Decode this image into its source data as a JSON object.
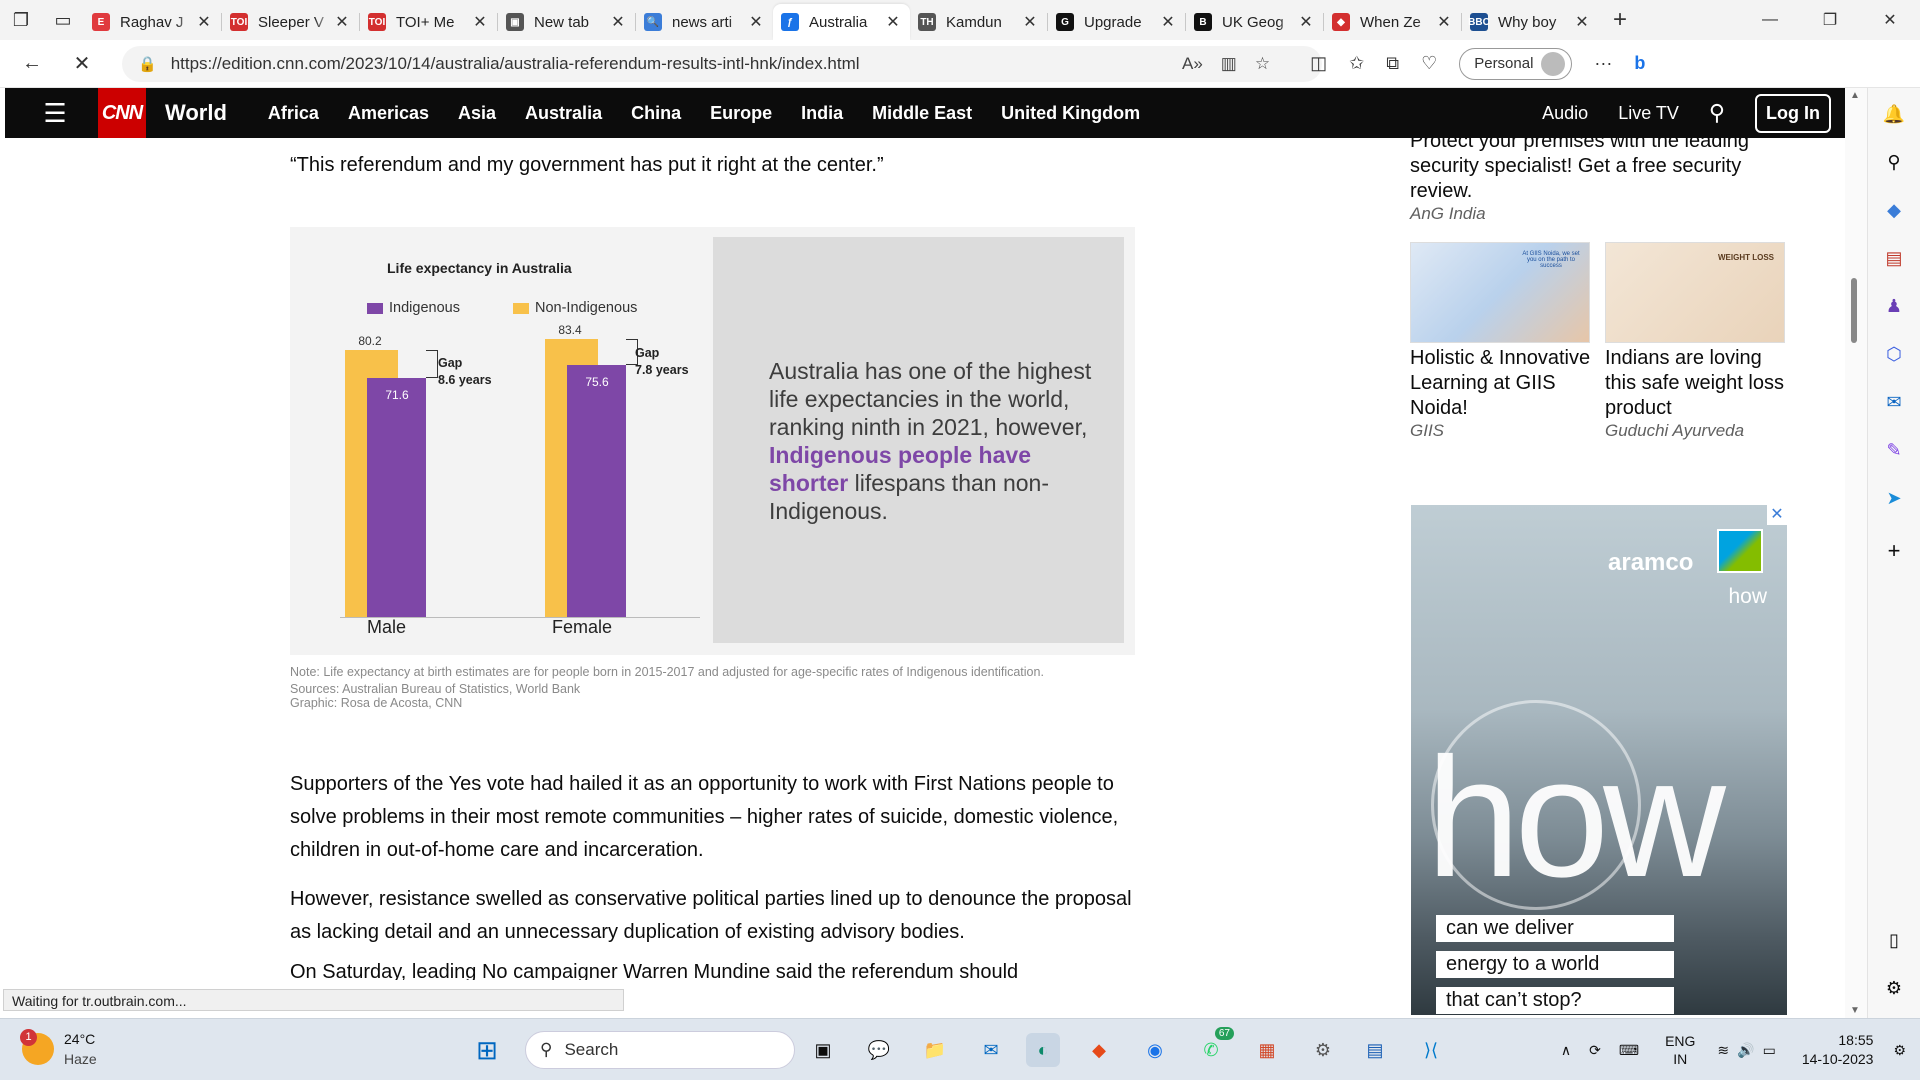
{
  "browser": {
    "tabs": [
      {
        "title": "Raghav J",
        "fav": "E",
        "color": "#e03a3e"
      },
      {
        "title": "Sleeper V",
        "fav": "TOI",
        "color": "#d32f2f"
      },
      {
        "title": "TOI+ Me",
        "fav": "TOI",
        "color": "#d32f2f"
      },
      {
        "title": "New tab",
        "fav": "▣",
        "color": "#555"
      },
      {
        "title": "news arti",
        "fav": "🔍",
        "color": "#3b7dd8"
      },
      {
        "title": "Australia",
        "fav": "ƒ",
        "color": "#1a73e8"
      },
      {
        "title": "Kamdun",
        "fav": "TH",
        "color": "#555"
      },
      {
        "title": "Upgrade",
        "fav": "G",
        "color": "#111"
      },
      {
        "title": "UK Geog",
        "fav": "B",
        "color": "#111"
      },
      {
        "title": "When Ze",
        "fav": "◆",
        "color": "#d32f2f"
      },
      {
        "title": "Why boy",
        "fav": "BBC",
        "color": "#1d4f91"
      }
    ],
    "active_tab_index": 5,
    "url": "https://edition.cnn.com/2023/10/14/australia/australia-referendum-results-intl-hnk/index.html",
    "profile_label": "Personal"
  },
  "cnn_nav": {
    "logo": "CNN",
    "section": "World",
    "items": [
      "Africa",
      "Americas",
      "Asia",
      "Australia",
      "China",
      "Europe",
      "India",
      "Middle East",
      "United Kingdom"
    ],
    "right": {
      "audio": "Audio",
      "live_tv": "Live TV",
      "login": "Log In"
    }
  },
  "article": {
    "quote": "“This referendum and my government has put it right at the center.”",
    "figure": {
      "text_before": "Australia has one of the highest life expectancies in the world, ranking ninth in 2021, however, ",
      "text_highlight": "Indigenous people have shorter",
      "text_after": " lifespans than non-Indigenous.",
      "note": "Note: Life expectancy at birth estimates are for people born in 2015-2017 and adjusted for age-specific rates of Indigenous identification.",
      "sources": "Sources: Australian Bureau of Statistics, World Bank",
      "credit": "Graphic: Rosa de Acosta, CNN"
    },
    "para1": "Supporters of the Yes vote had hailed it as an opportunity to work with First Nations people to solve problems in their most remote communities – higher rates of suicide, domestic violence, children in out-of-home care and incarceration.",
    "para2": "However, resistance swelled as conservative political parties lined up to denounce the proposal as lacking detail and an unnecessary duplication of existing advisory bodies.",
    "para3": "On Saturday, leading No campaigner Warren Mundine said the referendum should"
  },
  "chart_data": {
    "type": "bar",
    "title": "Life expectancy in Australia",
    "categories": [
      "Male",
      "Female"
    ],
    "series": [
      {
        "name": "Indigenous",
        "values": [
          71.6,
          75.6
        ],
        "color": "#7e47a7"
      },
      {
        "name": "Non-Indigenous",
        "values": [
          80.2,
          83.4
        ],
        "color": "#f8c14a"
      }
    ],
    "gap_labels": [
      "Gap",
      "Gap"
    ],
    "gaps": [
      "8.6 years",
      "7.8 years"
    ],
    "ylim": [
      0,
      90
    ],
    "legend": "top"
  },
  "ads": {
    "top_text": "Protect your premises with the leading security specialist! Get a free security review.",
    "top_src": "AnG India",
    "card1_title": "Holistic & Innovative Learning at GIIS Noida!",
    "card1_src": "GIIS",
    "card1_img_text": "At GIIS Noida, we set you on the path to success",
    "card2_title": "Indians are loving this safe weight loss product",
    "card2_src": "Guduchi Ayurveda",
    "card2_img_text": "WEIGHT LOSS",
    "aramco_logo": "aramco",
    "aramco_small": "how",
    "aramco_big": "how",
    "aramco_lines": [
      "can we deliver",
      "energy to a world",
      "that can’t stop?"
    ]
  },
  "status": "Waiting for tr.outbrain.com...",
  "taskbar": {
    "weather_badge": "1",
    "temp": "24°C",
    "cond": "Haze",
    "search": "Search",
    "whatsapp_badge": "67",
    "lang1": "ENG",
    "lang2": "IN",
    "time": "18:55",
    "date": "14-10-2023"
  }
}
